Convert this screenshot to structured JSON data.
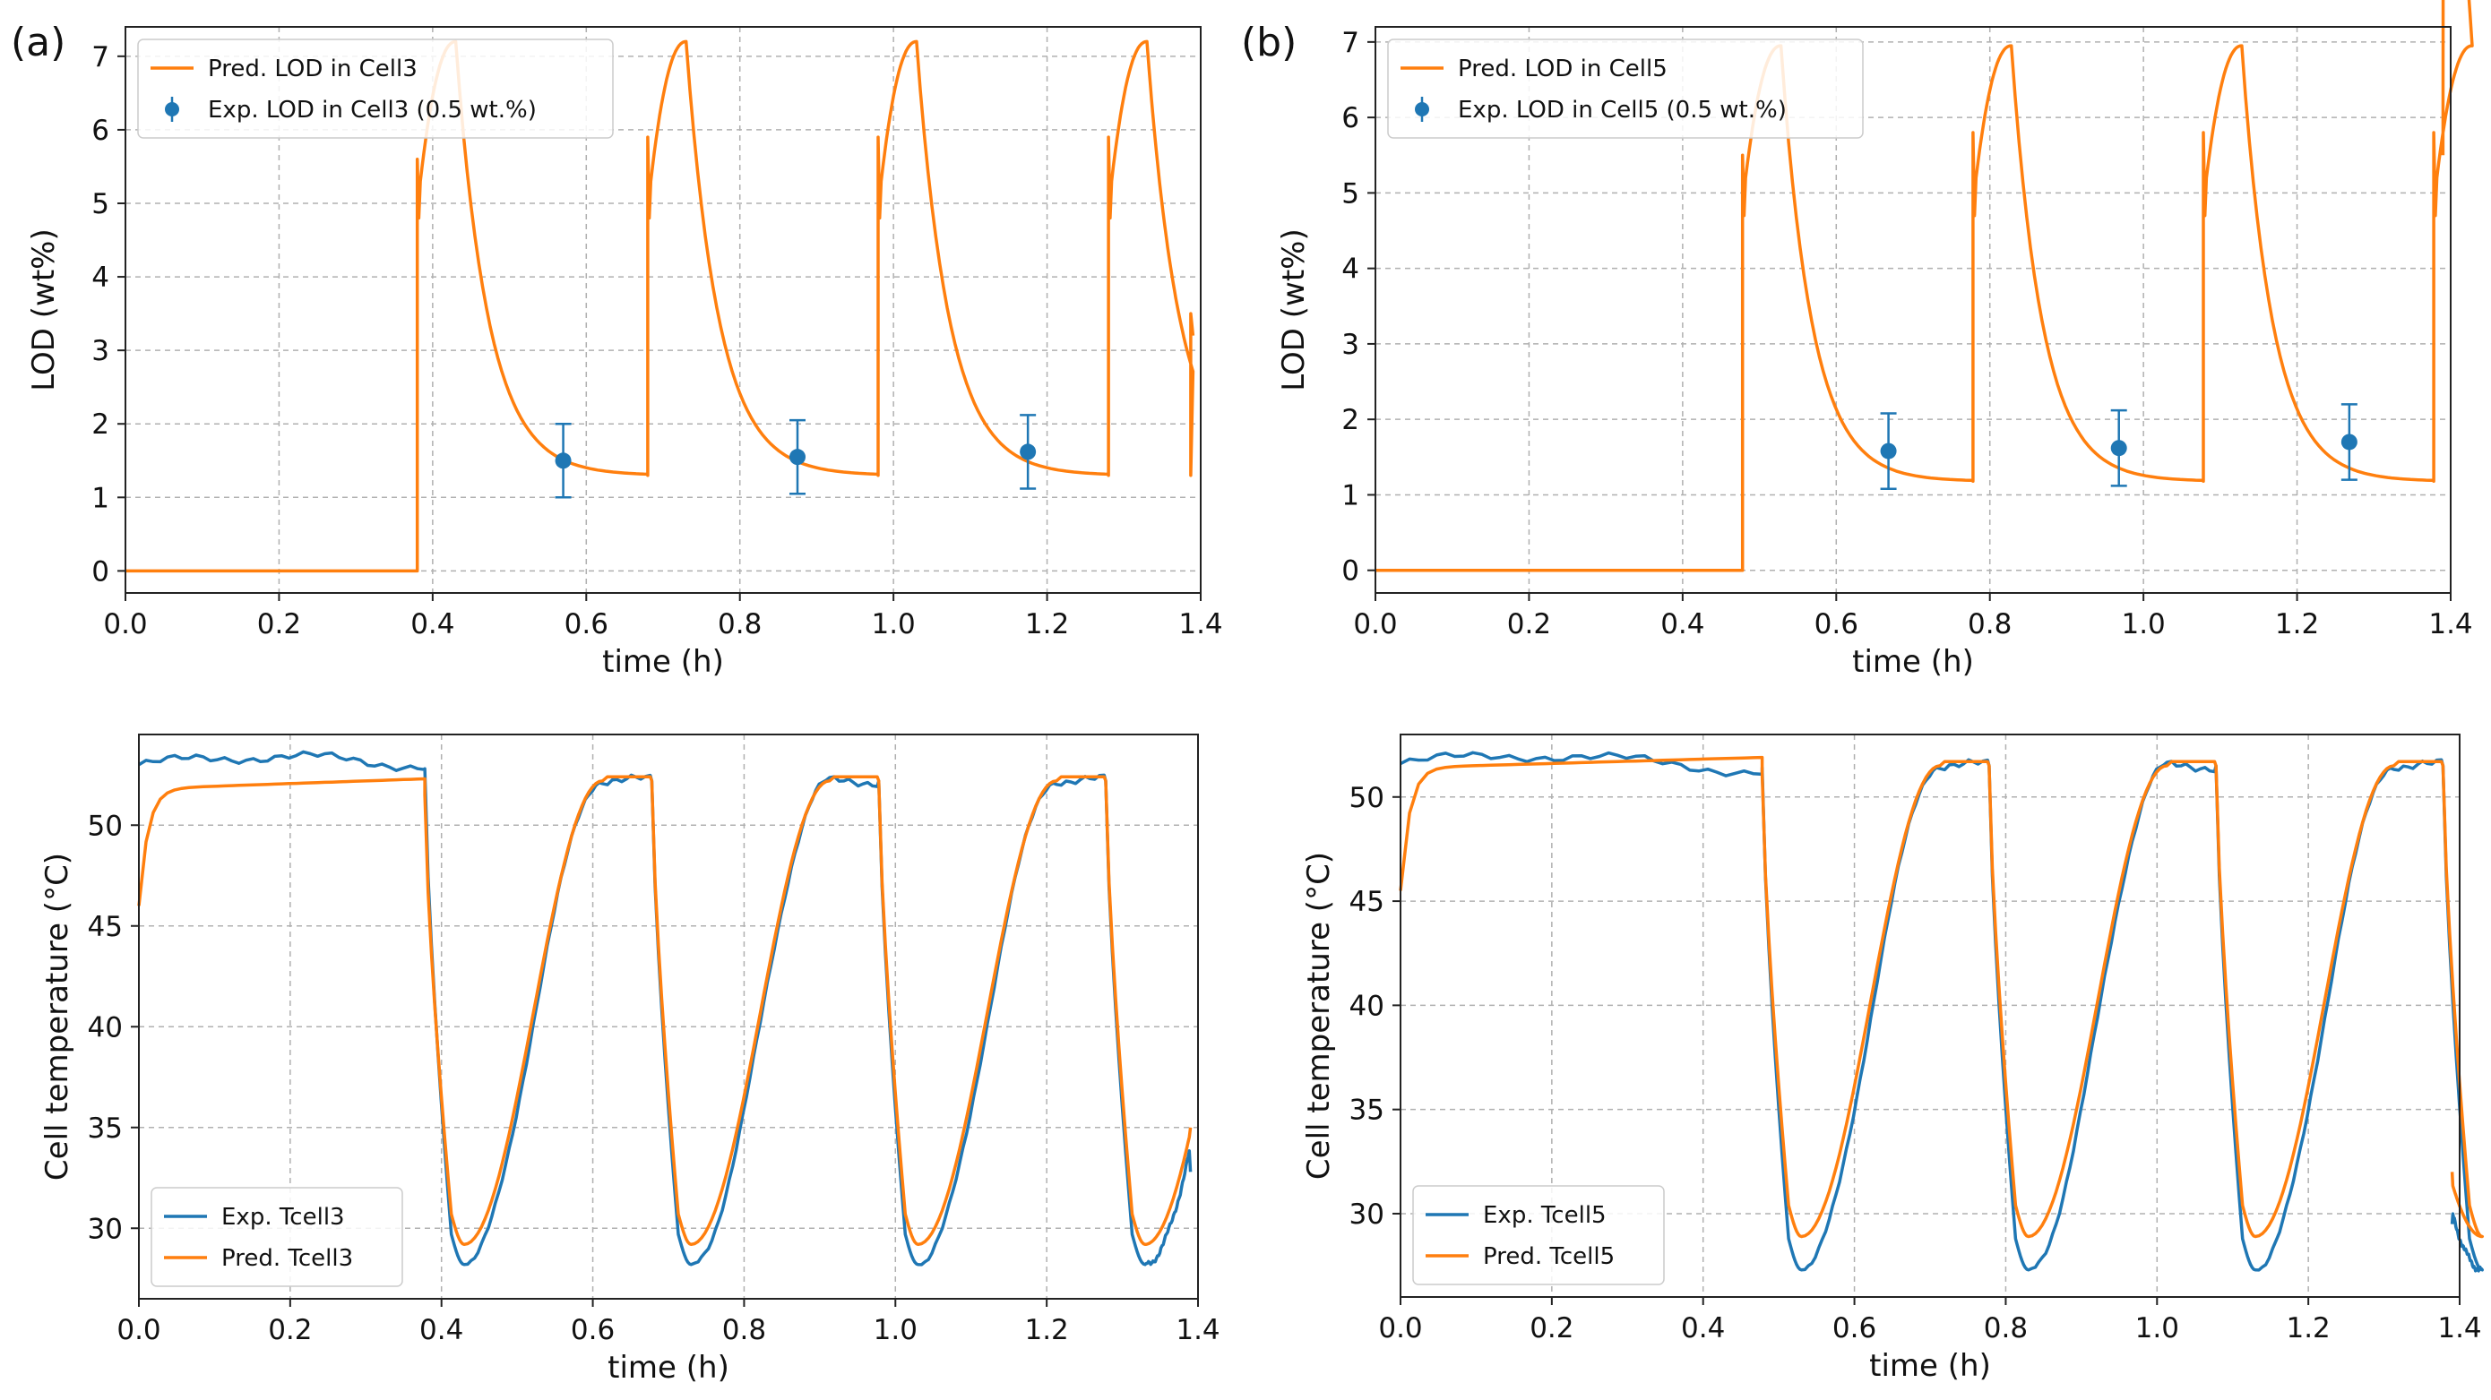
{
  "figure_labels": {
    "a": "(a)",
    "b": "(b)"
  },
  "colors": {
    "pred": "#ff7f0e",
    "exp": "#1f77b4",
    "grid": "#b0b0b0"
  },
  "chart_data": [
    {
      "id": "a_top",
      "type": "line",
      "title": "",
      "xlabel": "time (h)",
      "ylabel": "LOD (wt%)",
      "xlim": [
        0,
        1.4
      ],
      "ylim": [
        -0.3,
        7.4
      ],
      "xticks": [
        0,
        0.2,
        0.4,
        0.6,
        0.8,
        1.0,
        1.2,
        1.4
      ],
      "xtick_labels": [
        "0.0",
        "0.2",
        "0.4",
        "0.6",
        "0.8",
        "1.0",
        "1.2",
        "1.4"
      ],
      "yticks": [
        0,
        1,
        2,
        3,
        4,
        5,
        6,
        7
      ],
      "ytick_labels": [
        "0",
        "1",
        "2",
        "3",
        "4",
        "5",
        "6",
        "7"
      ],
      "grid": true,
      "legend_position": "top-left",
      "legend": [
        "Pred. LOD in Cell3",
        "Exp. LOD in Cell3 (0.5 wt.%)"
      ],
      "pred_lod": {
        "name": "Pred. LOD in Cell3",
        "start": 0.38,
        "period": 0.3,
        "charge_end": 0.05,
        "end": 1.39,
        "peak": 7.2,
        "floor": 1.3,
        "first_jump": 5.6,
        "dip": 4.8,
        "jump": 5.9,
        "decay_tau": 0.042,
        "final": 3.2
      },
      "exp_lod": {
        "name": "Exp. LOD in Cell3 (0.5 wt.%)",
        "x": [
          0.57,
          0.875,
          1.175
        ],
        "y": [
          1.5,
          1.55,
          1.62
        ],
        "err": [
          0.5,
          0.5,
          0.5
        ]
      }
    },
    {
      "id": "b_top",
      "type": "line",
      "title": "",
      "xlabel": "time (h)",
      "ylabel": "LOD (wt%)",
      "xlim": [
        0,
        1.4
      ],
      "ylim": [
        -0.3,
        7.2
      ],
      "xticks": [
        0,
        0.2,
        0.4,
        0.6,
        0.8,
        1.0,
        1.2,
        1.4
      ],
      "xtick_labels": [
        "0.0",
        "0.2",
        "0.4",
        "0.6",
        "0.8",
        "1.0",
        "1.2",
        "1.4"
      ],
      "yticks": [
        0,
        1,
        2,
        3,
        4,
        5,
        6,
        7
      ],
      "ytick_labels": [
        "0",
        "1",
        "2",
        "3",
        "4",
        "5",
        "6",
        "7"
      ],
      "grid": true,
      "legend_position": "top-left",
      "legend": [
        "Pred. LOD in Cell5",
        "Exp. LOD in Cell5 (0.5 wt.%)"
      ],
      "pred_lod": {
        "name": "Pred. LOD in Cell5",
        "start": 0.478,
        "period": 0.3,
        "charge_end": 0.05,
        "end": 1.39,
        "peak": 6.95,
        "floor": 1.18,
        "first_jump": 5.5,
        "dip": 4.7,
        "jump": 5.8,
        "decay_tau": 0.04,
        "final": 5.5
      },
      "exp_lod": {
        "name": "Exp. LOD in Cell5 (0.5 wt.%)",
        "x": [
          0.668,
          0.968,
          1.268
        ],
        "y": [
          1.58,
          1.62,
          1.7
        ],
        "err": [
          0.5,
          0.5,
          0.5
        ]
      }
    },
    {
      "id": "a_bottom",
      "type": "line",
      "title": "",
      "xlabel": "time (h)",
      "ylabel": "Cell temperature (°C)",
      "xlim": [
        0,
        1.4
      ],
      "ylim": [
        26.5,
        54.5
      ],
      "xticks": [
        0,
        0.2,
        0.4,
        0.6,
        0.8,
        1.0,
        1.2,
        1.4
      ],
      "xtick_labels": [
        "0.0",
        "0.2",
        "0.4",
        "0.6",
        "0.8",
        "1.0",
        "1.2",
        "1.4"
      ],
      "yticks": [
        30,
        35,
        40,
        45,
        50
      ],
      "ytick_labels": [
        "30",
        "35",
        "40",
        "45",
        "50"
      ],
      "grid": true,
      "legend_position": "bottom-left",
      "legend": [
        "Exp. Tcell3",
        "Pred. Tcell3"
      ],
      "temp": {
        "start": 0.378,
        "period": 0.3,
        "charge_end": 0.05,
        "end": 1.39,
        "init_pred": 46.5,
        "plateau_pred": 52.3,
        "plateau_exp": 53.0,
        "min_pred": 29.2,
        "min_exp": 28.2,
        "high": 52.2,
        "final_pred": 35.0,
        "final_exp": 32.8
      },
      "series": [
        {
          "name": "Exp. Tcell3"
        },
        {
          "name": "Pred. Tcell3"
        }
      ]
    },
    {
      "id": "b_bottom",
      "type": "line",
      "title": "",
      "xlabel": "time (h)",
      "ylabel": "Cell temperature (°C)",
      "xlim": [
        0,
        1.4
      ],
      "ylim": [
        26,
        53
      ],
      "xticks": [
        0,
        0.2,
        0.4,
        0.6,
        0.8,
        1.0,
        1.2,
        1.4
      ],
      "xtick_labels": [
        "0.0",
        "0.2",
        "0.4",
        "0.6",
        "0.8",
        "1.0",
        "1.2",
        "1.4"
      ],
      "yticks": [
        30,
        35,
        40,
        45,
        50
      ],
      "ytick_labels": [
        "30",
        "35",
        "40",
        "45",
        "50"
      ],
      "grid": true,
      "legend_position": "bottom-left",
      "legend": [
        "Exp. Tcell5",
        "Pred. Tcell5"
      ],
      "temp": {
        "start": 0.478,
        "period": 0.3,
        "charge_end": 0.05,
        "end": 1.39,
        "init_pred": 46.0,
        "plateau_pred": 51.9,
        "plateau_exp": 51.6,
        "min_pred": 28.9,
        "min_exp": 27.3,
        "high": 51.5,
        "final_pred": 32.0,
        "final_exp": 29.5
      },
      "series": [
        {
          "name": "Exp. Tcell5"
        },
        {
          "name": "Pred. Tcell5"
        }
      ]
    }
  ]
}
